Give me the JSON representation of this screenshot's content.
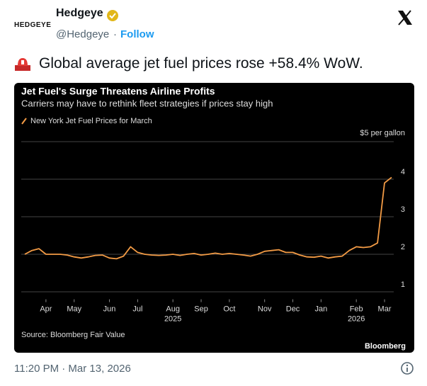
{
  "header": {
    "logo": "HEDGEYE",
    "name": "Hedgeye",
    "handle": "@Hedgeye",
    "follow": "Follow"
  },
  "tweet": {
    "text": "Global average jet fuel prices rose +58.4% WoW.",
    "timestamp": "11:20 PM · Mar 13, 2026"
  },
  "chart_data": {
    "type": "line",
    "title": "Jet Fuel's Surge Threatens Airline Profits",
    "subtitle": "Carriers may have to rethink fleet strategies if prices stay high",
    "source": "Source: Bloomberg Fair Value",
    "brand": "Bloomberg",
    "categories": [
      null,
      null,
      null,
      "Apr",
      null,
      null,
      null,
      "May",
      null,
      null,
      null,
      null,
      "Jun",
      null,
      null,
      null,
      "Jul",
      null,
      null,
      null,
      null,
      "Aug 2025",
      null,
      null,
      null,
      "Sep",
      null,
      null,
      null,
      "Oct",
      null,
      null,
      null,
      null,
      "Nov",
      null,
      null,
      null,
      "Dec",
      null,
      null,
      null,
      "Jan",
      null,
      null,
      null,
      null,
      "Feb 2026",
      null,
      null,
      null,
      "Mar",
      null
    ],
    "series": [
      {
        "name": "New York Jet Fuel Prices for March",
        "color": "#f39b45",
        "values": [
          2.0,
          2.1,
          2.15,
          2.0,
          2.0,
          2.0,
          1.98,
          1.93,
          1.9,
          1.93,
          1.97,
          1.98,
          1.9,
          1.88,
          1.95,
          2.2,
          2.05,
          2.0,
          1.98,
          1.97,
          1.98,
          2.0,
          1.97,
          2.0,
          2.02,
          1.98,
          2.0,
          2.03,
          2.0,
          2.02,
          2.0,
          1.98,
          1.95,
          2.0,
          2.08,
          2.1,
          2.12,
          2.05,
          2.05,
          1.98,
          1.93,
          1.92,
          1.95,
          1.9,
          1.93,
          1.95,
          2.1,
          2.2,
          2.18,
          2.2,
          2.3,
          3.9,
          4.05
        ]
      }
    ],
    "ylim": [
      0.8,
      5.1
    ],
    "yticks": [
      1,
      2,
      3,
      4,
      {
        "value": 5,
        "label": "$5 per gallon"
      }
    ],
    "grid": true
  }
}
